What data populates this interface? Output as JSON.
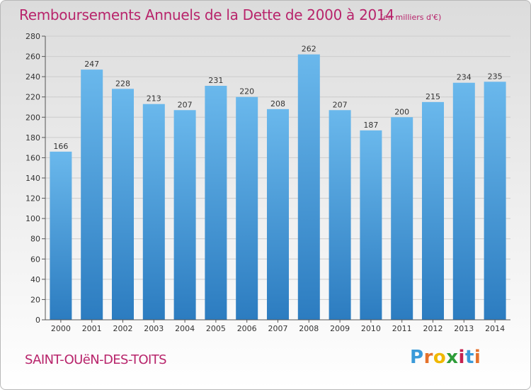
{
  "title": "Remboursements Annuels de la Dette de 2000 à 2014",
  "subtitle": "(en milliers d'€)",
  "commune": "SAINT-OUëN-DES-TOITS",
  "logo": {
    "letters": [
      "P",
      "r",
      "o",
      "x",
      "i",
      "t",
      "i"
    ],
    "colors": [
      "#3a9ad9",
      "#e5712b",
      "#f0b800",
      "#2e9d3a",
      "#c5224f",
      "#3a9ad9",
      "#e5712b"
    ]
  },
  "colors": {
    "title": "#b8246b",
    "bar_top": "#6ab8ec",
    "bar_bottom": "#2c7cc0",
    "grid": "#cccccc"
  },
  "chart_data": {
    "type": "bar",
    "title": "Remboursements Annuels de la Dette de 2000 à 2014",
    "categories": [
      "2000",
      "2001",
      "2002",
      "2003",
      "2004",
      "2005",
      "2006",
      "2007",
      "2008",
      "2009",
      "2010",
      "2011",
      "2012",
      "2013",
      "2014"
    ],
    "values": [
      166,
      247,
      228,
      213,
      207,
      231,
      220,
      208,
      262,
      207,
      187,
      200,
      215,
      234,
      235
    ],
    "ylim": [
      0,
      280
    ],
    "yticks": [
      0,
      20,
      40,
      60,
      80,
      100,
      120,
      140,
      160,
      180,
      200,
      220,
      240,
      260,
      280
    ],
    "grid": true,
    "legend": "none"
  }
}
